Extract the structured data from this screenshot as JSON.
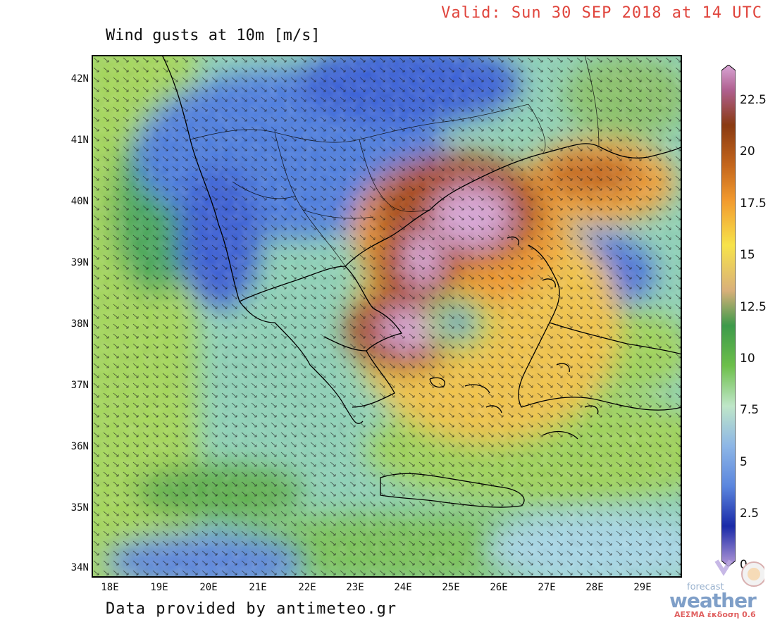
{
  "header": {
    "valid_text": "Valid: Sun 30 SEP 2018 at 14 UTC",
    "title": "Wind gusts at 10m [m/s]"
  },
  "footer": {
    "credit": "Data provided by antimeteo.gr"
  },
  "map": {
    "lat_labels": [
      "42N",
      "41N",
      "40N",
      "39N",
      "38N",
      "37N",
      "36N",
      "35N",
      "34N"
    ],
    "lon_labels": [
      "18E",
      "19E",
      "20E",
      "21E",
      "22E",
      "23E",
      "24E",
      "25E",
      "26E",
      "27E",
      "28E",
      "29E"
    ]
  },
  "colorbar": {
    "labels": [
      "22.5",
      "20",
      "17.5",
      "15",
      "12.5",
      "10",
      "7.5",
      "5",
      "2.5",
      "0"
    ],
    "colors": {
      "max": "#d9a6d6",
      "dark_orange": "#a84a12",
      "orange": "#f29a2e",
      "yellow": "#f7e34a",
      "tan": "#d9b07a",
      "green": "#3d9a4a",
      "light_green": "#9fd45a",
      "pale": "#bfe6c8",
      "blue": "#5b86de",
      "dark_blue": "#1a2aa8",
      "min": "#b69ad8"
    }
  },
  "logo": {
    "forecast": "forecast",
    "weather": "weather",
    "subtitle": "ΑΕΣΜΑ έκδοση 0.6"
  }
}
